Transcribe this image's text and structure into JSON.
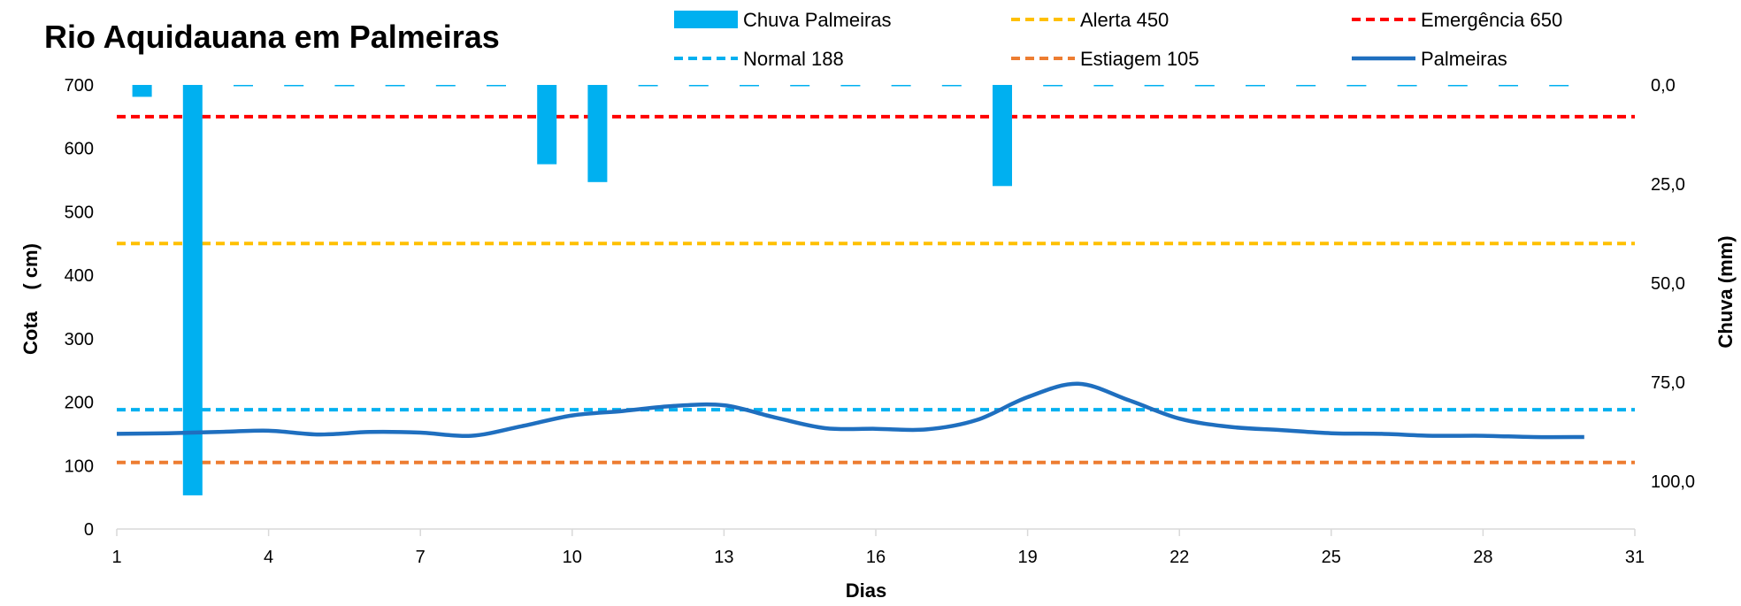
{
  "chart_data": {
    "type": "line",
    "title": "Rio Aquidauana em Palmeiras",
    "xlabel": "Dias",
    "ylabel": "Cota    ( cm)",
    "y2label": "Chuva (mm)",
    "xlim": [
      1,
      31
    ],
    "ylim": [
      0,
      700
    ],
    "y2lim_inverted": [
      0,
      112
    ],
    "x_ticks": [
      "1",
      "4",
      "7",
      "10",
      "13",
      "16",
      "19",
      "22",
      "25",
      "28",
      "31"
    ],
    "y_ticks": [
      "0",
      "100",
      "200",
      "300",
      "400",
      "500",
      "600",
      "700"
    ],
    "y2_ticks": [
      "0,0",
      "25,0",
      "50,0",
      "75,0",
      "100,0"
    ],
    "legend_position": "top",
    "reference_lines": [
      {
        "name": "Alerta 450",
        "value": 450,
        "color": "#ffc000"
      },
      {
        "name": "Emergência 650",
        "value": 650,
        "color": "#ff0000"
      },
      {
        "name": "Normal  188",
        "value": 188,
        "color": "#00b0f0"
      },
      {
        "name": "Estiagem 105",
        "value": 105,
        "color": "#ed7d31"
      }
    ],
    "rain_series": {
      "name": "Chuva  Palmeiras",
      "color": "#00b0f0",
      "x": [
        1.5,
        2.5,
        3.5,
        4.5,
        5.5,
        6.5,
        7.5,
        8.5,
        9.5,
        10.5,
        11.5,
        12.5,
        13.5,
        14.5,
        15.5,
        16.5,
        17.5,
        18.5,
        19.5,
        20.5,
        21.5,
        22.5,
        23.5,
        24.5,
        25.5,
        26.5,
        27.5,
        28.5,
        29.5
      ],
      "values": [
        3,
        103.5,
        0,
        0,
        0,
        0,
        0,
        0,
        20,
        24.5,
        0,
        0,
        0,
        0,
        0,
        0,
        0,
        25.5,
        0,
        0,
        0,
        0,
        0,
        0,
        0,
        0,
        0,
        0,
        0
      ]
    },
    "series": [
      {
        "name": "Palmeiras",
        "color": "#1f6fbf",
        "x": [
          1,
          2,
          3,
          4,
          5,
          6,
          7,
          8,
          9,
          10,
          11,
          12,
          13,
          14,
          15,
          16,
          17,
          18,
          19,
          20,
          21,
          22,
          23,
          24,
          25,
          26,
          27,
          28,
          29,
          30
        ],
        "values": [
          150,
          151,
          153,
          155,
          149,
          153,
          152,
          147,
          162,
          179,
          186,
          194,
          195,
          176,
          159,
          158,
          157,
          172,
          208,
          229,
          203,
          174,
          161,
          156,
          151,
          150,
          147,
          147,
          145,
          145
        ]
      }
    ]
  }
}
